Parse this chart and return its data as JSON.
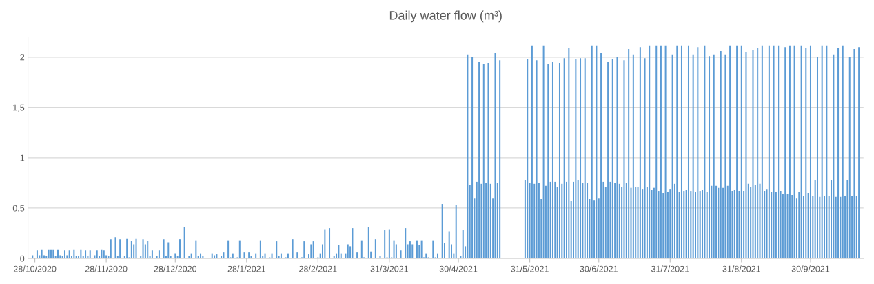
{
  "chart_data": {
    "type": "bar",
    "title": "Daily water flow (m³)",
    "x": [
      "2020-10-27",
      "2020-10-29",
      "2020-10-30",
      "2020-10-31",
      "2020-11-01",
      "2020-11-02",
      "2020-11-03",
      "2020-11-04",
      "2020-11-05",
      "2020-11-06",
      "2020-11-07",
      "2020-11-08",
      "2020-11-09",
      "2020-11-10",
      "2020-11-11",
      "2020-11-12",
      "2020-11-13",
      "2020-11-14",
      "2020-11-15",
      "2020-11-16",
      "2020-11-17",
      "2020-11-18",
      "2020-11-19",
      "2020-11-20",
      "2020-11-21",
      "2020-11-23",
      "2020-11-24",
      "2020-11-25",
      "2020-11-26",
      "2020-11-27",
      "2020-11-28",
      "2020-11-29",
      "2020-11-30",
      "2020-12-02",
      "2020-12-03",
      "2020-12-04",
      "2020-12-06",
      "2020-12-07",
      "2020-12-08",
      "2020-12-09",
      "2020-12-10",
      "2020-12-11",
      "2020-12-13",
      "2020-12-14",
      "2020-12-15",
      "2020-12-16",
      "2020-12-17",
      "2020-12-18",
      "2020-12-20",
      "2020-12-21",
      "2020-12-23",
      "2020-12-24",
      "2020-12-25",
      "2020-12-26",
      "2020-12-28",
      "2020-12-29",
      "2020-12-30",
      "2021-01-01",
      "2021-01-03",
      "2021-01-04",
      "2021-01-06",
      "2021-01-07",
      "2021-01-08",
      "2021-01-09",
      "2021-01-13",
      "2021-01-14",
      "2021-01-15",
      "2021-01-17",
      "2021-01-18",
      "2021-01-20",
      "2021-01-21",
      "2021-01-22",
      "2021-01-24",
      "2021-01-25",
      "2021-01-27",
      "2021-01-29",
      "2021-01-30",
      "2021-02-01",
      "2021-02-03",
      "2021-02-04",
      "2021-02-05",
      "2021-02-07",
      "2021-02-08",
      "2021-02-10",
      "2021-02-11",
      "2021-02-12",
      "2021-02-14",
      "2021-02-15",
      "2021-02-17",
      "2021-02-19",
      "2021-02-21",
      "2021-02-22",
      "2021-02-24",
      "2021-02-25",
      "2021-02-26",
      "2021-02-28",
      "2021-03-01",
      "2021-03-02",
      "2021-03-03",
      "2021-03-05",
      "2021-03-07",
      "2021-03-08",
      "2021-03-09",
      "2021-03-10",
      "2021-03-12",
      "2021-03-13",
      "2021-03-14",
      "2021-03-15",
      "2021-03-17",
      "2021-03-19",
      "2021-03-20",
      "2021-03-22",
      "2021-03-23",
      "2021-03-25",
      "2021-03-27",
      "2021-03-29",
      "2021-03-30",
      "2021-03-31",
      "2021-04-01",
      "2021-04-02",
      "2021-04-03",
      "2021-04-05",
      "2021-04-07",
      "2021-04-08",
      "2021-04-09",
      "2021-04-10",
      "2021-04-12",
      "2021-04-13",
      "2021-04-14",
      "2021-04-15",
      "2021-04-16",
      "2021-04-17",
      "2021-04-19",
      "2021-04-20",
      "2021-04-21",
      "2021-04-23",
      "2021-04-24",
      "2021-04-26",
      "2021-04-27",
      "2021-04-28",
      "2021-04-29",
      "2021-05-01",
      "2021-05-02",
      "2021-05-03",
      "2021-05-04",
      "2021-05-05",
      "2021-05-06",
      "2021-05-07",
      "2021-05-08",
      "2021-05-09",
      "2021-05-10",
      "2021-05-11",
      "2021-05-12",
      "2021-05-13",
      "2021-05-14",
      "2021-05-15",
      "2021-05-16",
      "2021-05-17",
      "2021-05-18",
      "2021-05-29",
      "2021-05-30",
      "2021-05-31",
      "2021-06-01",
      "2021-06-02",
      "2021-06-03",
      "2021-06-04",
      "2021-06-05",
      "2021-06-06",
      "2021-06-07",
      "2021-06-08",
      "2021-06-09",
      "2021-06-10",
      "2021-06-11",
      "2021-06-12",
      "2021-06-13",
      "2021-06-14",
      "2021-06-15",
      "2021-06-16",
      "2021-06-17",
      "2021-06-18",
      "2021-06-19",
      "2021-06-20",
      "2021-06-21",
      "2021-06-22",
      "2021-06-23",
      "2021-06-24",
      "2021-06-25",
      "2021-06-26",
      "2021-06-27",
      "2021-06-28",
      "2021-06-29",
      "2021-06-30",
      "2021-07-01",
      "2021-07-02",
      "2021-07-03",
      "2021-07-04",
      "2021-07-05",
      "2021-07-06",
      "2021-07-07",
      "2021-07-08",
      "2021-07-09",
      "2021-07-10",
      "2021-07-11",
      "2021-07-12",
      "2021-07-13",
      "2021-07-14",
      "2021-07-15",
      "2021-07-16",
      "2021-07-17",
      "2021-07-18",
      "2021-07-19",
      "2021-07-20",
      "2021-07-21",
      "2021-07-22",
      "2021-07-23",
      "2021-07-24",
      "2021-07-25",
      "2021-07-26",
      "2021-07-27",
      "2021-07-28",
      "2021-07-29",
      "2021-07-30",
      "2021-07-31",
      "2021-08-01",
      "2021-08-02",
      "2021-08-03",
      "2021-08-04",
      "2021-08-05",
      "2021-08-06",
      "2021-08-07",
      "2021-08-08",
      "2021-08-09",
      "2021-08-10",
      "2021-08-11",
      "2021-08-12",
      "2021-08-13",
      "2021-08-14",
      "2021-08-15",
      "2021-08-16",
      "2021-08-17",
      "2021-08-18",
      "2021-08-19",
      "2021-08-20",
      "2021-08-21",
      "2021-08-22",
      "2021-08-23",
      "2021-08-24",
      "2021-08-25",
      "2021-08-26",
      "2021-08-27",
      "2021-08-28",
      "2021-08-29",
      "2021-08-30",
      "2021-08-31",
      "2021-09-01",
      "2021-09-02",
      "2021-09-03",
      "2021-09-04",
      "2021-09-05",
      "2021-09-06",
      "2021-09-07",
      "2021-09-08",
      "2021-09-09",
      "2021-09-10",
      "2021-09-11",
      "2021-09-12",
      "2021-09-13",
      "2021-09-14",
      "2021-09-15",
      "2021-09-16",
      "2021-09-17",
      "2021-09-18",
      "2021-09-19",
      "2021-09-20",
      "2021-09-21",
      "2021-09-22",
      "2021-09-23",
      "2021-09-24",
      "2021-09-25",
      "2021-09-26",
      "2021-09-27",
      "2021-09-28",
      "2021-09-29",
      "2021-09-30",
      "2021-10-01",
      "2021-10-02",
      "2021-10-03",
      "2021-10-04",
      "2021-10-05",
      "2021-10-06",
      "2021-10-07",
      "2021-10-08",
      "2021-10-09",
      "2021-10-10",
      "2021-10-11",
      "2021-10-12",
      "2021-10-13",
      "2021-10-14",
      "2021-10-15",
      "2021-10-16",
      "2021-10-17",
      "2021-10-18",
      "2021-10-19",
      "2021-10-20",
      "2021-10-21"
    ],
    "series": [
      {
        "color": "#5b9bd5",
        "values": [
          0.03,
          0.08,
          0.03,
          0.09,
          0.03,
          0.02,
          0.09,
          0.09,
          0.09,
          0.02,
          0.09,
          0.03,
          0.02,
          0.08,
          0.03,
          0.08,
          0.02,
          0.09,
          0.02,
          0.02,
          0.09,
          0.02,
          0.08,
          0.02,
          0.08,
          0.03,
          0.08,
          0.02,
          0.09,
          0.08,
          0.03,
          0.02,
          0.19,
          0.21,
          0.02,
          0.19,
          0.02,
          0.2,
          0.01,
          0.17,
          0.14,
          0.2,
          0.02,
          0.19,
          0.14,
          0.17,
          0.02,
          0.08,
          0.02,
          0.08,
          0.19,
          0.02,
          0.16,
          0.02,
          0.05,
          0.02,
          0.19,
          0.31,
          0.02,
          0.05,
          0.18,
          0.02,
          0.05,
          0.02,
          0.05,
          0.03,
          0.04,
          0.02,
          0.06,
          0.18,
          0.01,
          0.05,
          0.01,
          0.18,
          0.06,
          0.06,
          0.02,
          0.05,
          0.18,
          0.02,
          0.05,
          0.01,
          0.05,
          0.17,
          0.02,
          0.05,
          0.01,
          0.05,
          0.19,
          0.06,
          0.01,
          0.17,
          0.04,
          0.14,
          0.17,
          0.01,
          0.05,
          0.14,
          0.29,
          0.3,
          0.02,
          0.05,
          0.13,
          0.05,
          0.05,
          0.14,
          0.12,
          0.3,
          0.06,
          0.18,
          0.01,
          0.31,
          0.07,
          0.19,
          0.02,
          0.28,
          0.01,
          0.29,
          0.01,
          0.18,
          0.14,
          0.08,
          0.3,
          0.14,
          0.17,
          0.14,
          0.18,
          0.13,
          0.18,
          0.01,
          0.05,
          0.01,
          0.18,
          0.01,
          0.05,
          0.54,
          0.15,
          0.27,
          0.14,
          0.05,
          0.53,
          0.02,
          0.28,
          0.12,
          2.02,
          0.73,
          2.0,
          0.6,
          0.76,
          1.95,
          0.74,
          1.93,
          0.75,
          1.94,
          0.74,
          0.6,
          2.04,
          0.75,
          1.97,
          0.78,
          1.98,
          0.75,
          2.11,
          0.74,
          1.97,
          0.75,
          0.59,
          2.11,
          0.72,
          1.93,
          0.76,
          1.95,
          0.76,
          0.71,
          1.94,
          0.74,
          1.99,
          0.76,
          2.09,
          0.57,
          0.76,
          1.98,
          0.78,
          1.99,
          0.75,
          1.99,
          0.75,
          0.59,
          2.11,
          0.58,
          2.11,
          0.6,
          2.04,
          0.76,
          0.71,
          1.95,
          0.76,
          1.98,
          0.75,
          2.0,
          0.74,
          0.71,
          1.97,
          0.75,
          2.08,
          0.7,
          2.02,
          0.71,
          0.71,
          2.1,
          0.69,
          1.99,
          0.71,
          2.11,
          0.68,
          0.7,
          2.11,
          0.67,
          2.11,
          0.65,
          2.11,
          0.66,
          0.69,
          2.02,
          0.74,
          2.11,
          0.66,
          2.11,
          0.67,
          0.68,
          2.11,
          0.67,
          2.02,
          0.66,
          2.1,
          0.67,
          0.68,
          2.11,
          0.66,
          2.01,
          0.72,
          2.02,
          0.72,
          0.7,
          2.06,
          0.7,
          2.02,
          0.72,
          2.11,
          0.67,
          0.68,
          2.11,
          0.67,
          2.11,
          0.67,
          2.05,
          0.74,
          0.71,
          2.07,
          0.73,
          2.09,
          0.74,
          2.11,
          0.67,
          0.69,
          2.11,
          0.66,
          2.11,
          0.66,
          2.11,
          0.67,
          0.64,
          2.1,
          0.64,
          2.11,
          0.63,
          2.11,
          0.6,
          0.66,
          2.11,
          0.62,
          2.09,
          0.65,
          2.11,
          0.62,
          0.78,
          2.0,
          0.61,
          2.11,
          0.62,
          2.11,
          0.62,
          0.78,
          2.02,
          0.61,
          2.09,
          0.61,
          2.11,
          0.62,
          0.78,
          2.0,
          0.62,
          2.08,
          0.62,
          2.1
        ]
      }
    ],
    "xlim": [
      "2020-10-25",
      "2021-10-23"
    ],
    "xticks": [
      {
        "value": "2020-10-28",
        "label": "28/10/2020"
      },
      {
        "value": "2020-11-28",
        "label": "28/11/2020"
      },
      {
        "value": "2020-12-28",
        "label": "28/12/2020"
      },
      {
        "value": "2021-01-28",
        "label": "28/1/2021"
      },
      {
        "value": "2021-02-28",
        "label": "28/2/2021"
      },
      {
        "value": "2021-03-31",
        "label": "31/3/2021"
      },
      {
        "value": "2021-04-30",
        "label": "30/4/2021"
      },
      {
        "value": "2021-05-31",
        "label": "31/5/2021"
      },
      {
        "value": "2021-06-30",
        "label": "30/6/2021"
      },
      {
        "value": "2021-07-31",
        "label": "31/7/2021"
      },
      {
        "value": "2021-08-31",
        "label": "31/8/2021"
      },
      {
        "value": "2021-09-30",
        "label": "30/9/2021"
      }
    ],
    "ylim": [
      0,
      2.2
    ],
    "yticks": [
      0,
      {
        "value": 0.5,
        "label": "0,5"
      },
      1,
      {
        "value": 1.5,
        "label": "1,5"
      },
      2
    ],
    "grid": "y",
    "legend": false
  }
}
